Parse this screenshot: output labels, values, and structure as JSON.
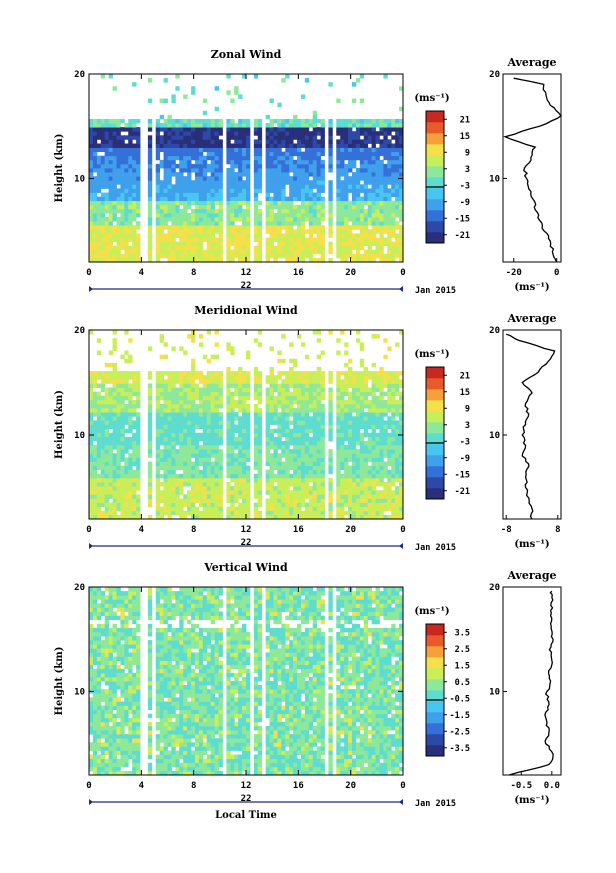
{
  "chart_data": [
    {
      "type": "heatmap",
      "title": "Zonal Wind",
      "ylabel": "Height (km)",
      "yticks": [
        "10",
        "20"
      ],
      "ylim": [
        2,
        20
      ],
      "xticks": [
        "0",
        "4",
        "8",
        "12",
        "16",
        "20",
        "0"
      ],
      "xlim": [
        0,
        24
      ],
      "date_label": "22",
      "month_label": "Jan 2015",
      "colorbar": {
        "unit": "(ms⁻¹)",
        "ticks": [
          "21",
          "15",
          "9",
          "3",
          "-3",
          "-9",
          "-15",
          "-21"
        ],
        "range": [
          -24,
          24
        ]
      },
      "average": {
        "title": "Average",
        "xticks": [
          "-20",
          "0"
        ],
        "xlim": [
          -25,
          2
        ],
        "yticks": [
          "10",
          "20"
        ],
        "unit": "(ms⁻¹)",
        "height": [
          2,
          3,
          4,
          5,
          6,
          7,
          8,
          9,
          10,
          11,
          12,
          13,
          14,
          15,
          16,
          17,
          18,
          19,
          19.6
        ],
        "value": [
          0,
          -2,
          -3,
          -6,
          -8,
          -10,
          -11,
          -13,
          -14,
          -15,
          -12,
          -10,
          -24,
          -8,
          2,
          -3,
          -5,
          -6,
          -20
        ]
      }
    },
    {
      "type": "heatmap",
      "title": "Meridional Wind",
      "ylabel": "Height (km)",
      "yticks": [
        "10",
        "20"
      ],
      "ylim": [
        2,
        20
      ],
      "xticks": [
        "0",
        "4",
        "8",
        "12",
        "16",
        "20",
        "0"
      ],
      "xlim": [
        0,
        24
      ],
      "date_label": "22",
      "month_label": "Jan 2015",
      "colorbar": {
        "unit": "(ms⁻¹)",
        "ticks": [
          "21",
          "15",
          "9",
          "3",
          "-3",
          "-9",
          "-15",
          "-21"
        ],
        "range": [
          -24,
          24
        ]
      },
      "average": {
        "title": "Average",
        "xticks": [
          "-8",
          "8"
        ],
        "xlim": [
          -9,
          9
        ],
        "yticks": [
          "10",
          "20"
        ],
        "unit": "(ms⁻¹)",
        "height": [
          2,
          3,
          4,
          5,
          6,
          7,
          8,
          9,
          10,
          11,
          12,
          13,
          14,
          15,
          16,
          17,
          18,
          19,
          19.6
        ],
        "value": [
          0,
          0,
          -1,
          -2,
          -2,
          -1,
          -3,
          -2,
          -3,
          -2,
          -1,
          -2,
          0,
          -3,
          2,
          5,
          7,
          -4,
          -8
        ]
      }
    },
    {
      "type": "heatmap",
      "title": "Vertical Wind",
      "ylabel": "Height (km)",
      "xlabel": "Local Time",
      "yticks": [
        "10",
        "20"
      ],
      "ylim": [
        2,
        20
      ],
      "xticks": [
        "0",
        "4",
        "8",
        "12",
        "16",
        "20",
        "0"
      ],
      "xlim": [
        0,
        24
      ],
      "date_label": "22",
      "month_label": "Jan 2015",
      "colorbar": {
        "unit": "(ms⁻¹)",
        "ticks": [
          "3.5",
          "2.5",
          "1.5",
          "0.5",
          "-0.5",
          "-1.5",
          "-2.5",
          "-3.5"
        ],
        "range": [
          -4,
          4
        ]
      },
      "average": {
        "title": "Average",
        "xticks": [
          "-0.5",
          "0.0"
        ],
        "xlim": [
          -0.8,
          0.15
        ],
        "yticks": [
          "10",
          "20"
        ],
        "unit": "(ms⁻¹)",
        "height": [
          2,
          3,
          4,
          5,
          6,
          7,
          8,
          9,
          10,
          11,
          12,
          13,
          14,
          15,
          16,
          17,
          18,
          19,
          19.6
        ],
        "value": [
          -0.7,
          -0.05,
          0.02,
          -0.1,
          -0.05,
          -0.08,
          -0.1,
          -0.05,
          -0.08,
          -0.02,
          -0.05,
          0.0,
          -0.04,
          0.02,
          -0.01,
          0.0,
          0.01,
          0.0,
          0.0
        ]
      }
    }
  ],
  "palette": [
    "#2a2f7a",
    "#2d49a8",
    "#3570d8",
    "#3fa0ec",
    "#48c6f0",
    "#5fdcd0",
    "#8ee89a",
    "#c8ee5a",
    "#f6e04a",
    "#f5a038",
    "#e85a2a",
    "#c8281f"
  ]
}
